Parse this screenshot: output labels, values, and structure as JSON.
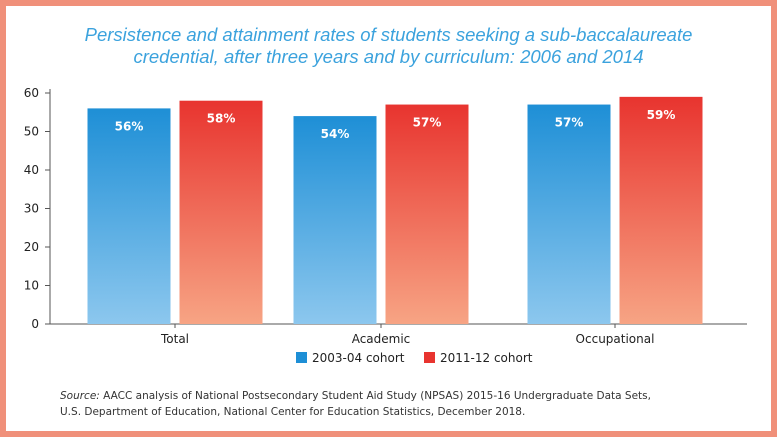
{
  "title_line1": "Persistence and attainment rates of students seeking a sub-baccalaureate",
  "title_line2": "credential, after three years and by curriculum: 2006 and 2014",
  "colors": {
    "frame": "#f0907a",
    "title": "#3ba2dd",
    "series1_top": "#1e8fd6",
    "series1_bottom": "#8cc7ee",
    "series2_top": "#e8342f",
    "series2_bottom": "#f7a484"
  },
  "chart_data": {
    "type": "bar",
    "categories": [
      "Total",
      "Academic",
      "Occupational"
    ],
    "series": [
      {
        "name": "2003-04 cohort",
        "values": [
          56,
          54,
          57
        ],
        "labels": [
          "56%",
          "54%",
          "57%"
        ]
      },
      {
        "name": "2011-12 cohort",
        "values": [
          58,
          57,
          59
        ],
        "labels": [
          "58%",
          "57%",
          "59%"
        ]
      }
    ],
    "ylim": [
      0,
      60
    ],
    "yticks": [
      "0",
      "10",
      "20",
      "30",
      "40",
      "50",
      "60"
    ],
    "xlabel": "",
    "ylabel": "",
    "grid": false,
    "legend": "bottom-center"
  },
  "source": {
    "label": "Source:",
    "line1": " AACC analysis of National Postsecondary Student Aid Study (NPSAS) 2015-16 Undergraduate Data Sets,",
    "line2": "U.S. Department of Education, National Center for Education Statistics, December 2018."
  }
}
